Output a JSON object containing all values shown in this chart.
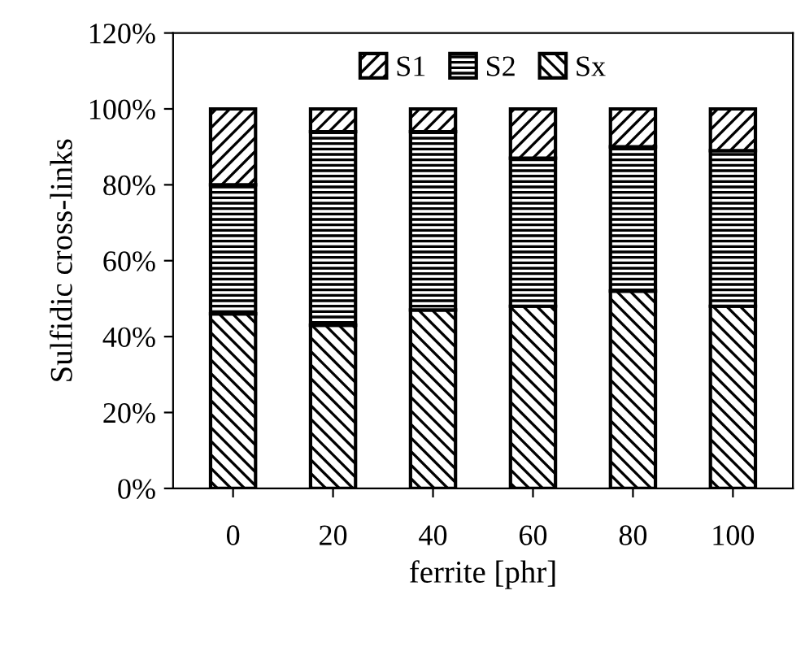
{
  "chart_data": {
    "type": "bar",
    "stacked": true,
    "xlabel": "ferrite [phr]",
    "ylabel": "Sulfidic cross-links",
    "categories": [
      "0",
      "20",
      "40",
      "60",
      "80",
      "100"
    ],
    "series": [
      {
        "name": "Sx",
        "color": "#000000",
        "values": [
          46,
          43,
          47,
          48,
          52,
          48
        ]
      },
      {
        "name": "S2",
        "color": "#000000",
        "values": [
          34,
          51,
          47,
          39,
          38,
          41
        ]
      },
      {
        "name": "S1",
        "color": "#000000",
        "values": [
          20,
          6,
          6,
          13,
          10,
          11
        ]
      }
    ],
    "ylim": [
      0,
      120
    ],
    "yticks": [
      {
        "value": 0,
        "label": "0%"
      },
      {
        "value": 20,
        "label": "20%"
      },
      {
        "value": 40,
        "label": "40%"
      },
      {
        "value": 60,
        "label": "60%"
      },
      {
        "value": 80,
        "label": "80%"
      },
      {
        "value": 100,
        "label": "100%"
      },
      {
        "value": 120,
        "label": "120%"
      }
    ],
    "legend": "top",
    "grid": false
  }
}
